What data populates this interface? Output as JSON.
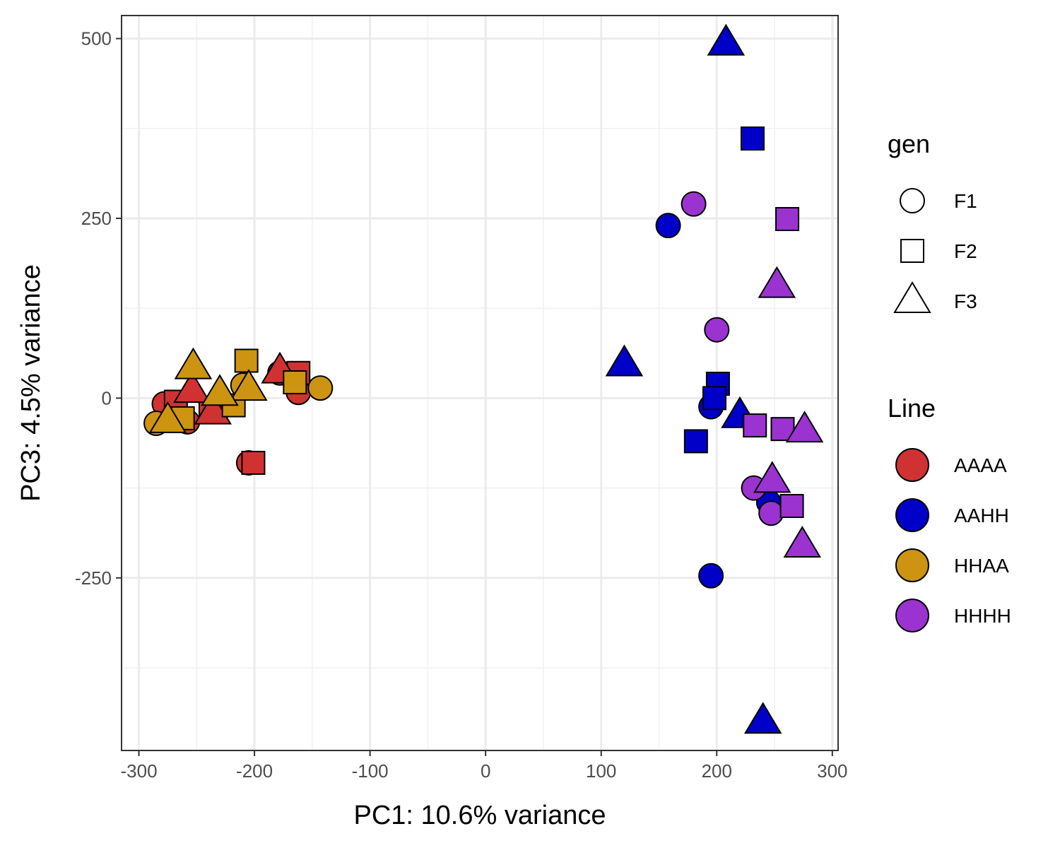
{
  "chart_data": {
    "type": "scatter",
    "title": "",
    "xlabel": "PC1: 10.6% variance",
    "ylabel": "PC3: 4.5% variance",
    "xlim": [
      -315,
      305
    ],
    "ylim": [
      -490,
      532
    ],
    "x_ticks": [
      -300,
      -200,
      -100,
      0,
      100,
      200,
      300
    ],
    "x_tick_labels": [
      "-300",
      "-200",
      "-100",
      "0",
      "100",
      "200",
      "300"
    ],
    "y_ticks": [
      -250,
      0,
      250,
      500
    ],
    "y_tick_labels": [
      "-250",
      "0",
      "250",
      "500"
    ],
    "grid": true,
    "legend_placement": "right",
    "shape_legend": {
      "title": "gen",
      "items": [
        {
          "label": "F1",
          "shape": "circle"
        },
        {
          "label": "F2",
          "shape": "square"
        },
        {
          "label": "F3",
          "shape": "triangle"
        }
      ]
    },
    "color_legend": {
      "title": "Line",
      "items": [
        {
          "label": "AAAA",
          "color": "#d03232"
        },
        {
          "label": "AAHH",
          "color": "#0000c8"
        },
        {
          "label": "HHAA",
          "color": "#cc9411"
        },
        {
          "label": "HHHH",
          "color": "#9a33d0"
        }
      ]
    },
    "series": [
      {
        "line": "AAAA",
        "gen": "F1",
        "points": [
          [
            -278,
            -8
          ],
          [
            -258,
            -33
          ],
          [
            -178,
            35
          ],
          [
            -162,
            8
          ],
          [
            -205,
            -90
          ]
        ]
      },
      {
        "line": "AAAA",
        "gen": "F2",
        "points": [
          [
            -268,
            -5
          ],
          [
            -238,
            -15
          ],
          [
            -162,
            35
          ],
          [
            -201,
            -90
          ]
        ]
      },
      {
        "line": "AAAA",
        "gen": "F3",
        "points": [
          [
            -254,
            10
          ],
          [
            -236,
            -20
          ],
          [
            -178,
            37
          ]
        ]
      },
      {
        "line": "AAHH",
        "gen": "F1",
        "points": [
          [
            158,
            240
          ],
          [
            195,
            -12
          ],
          [
            245,
            -145
          ],
          [
            195,
            -247
          ]
        ]
      },
      {
        "line": "AAHH",
        "gen": "F2",
        "points": [
          [
            231,
            361
          ],
          [
            201,
            20
          ],
          [
            198,
            0
          ],
          [
            182,
            -60
          ]
        ]
      },
      {
        "line": "AAHH",
        "gen": "F3",
        "points": [
          [
            208,
            493
          ],
          [
            120,
            47
          ],
          [
            220,
            -25
          ],
          [
            240,
            -450
          ]
        ]
      },
      {
        "line": "HHAA",
        "gen": "F1",
        "points": [
          [
            -285,
            -35
          ],
          [
            -210,
            18
          ],
          [
            -143,
            14
          ]
        ]
      },
      {
        "line": "HHAA",
        "gen": "F2",
        "points": [
          [
            -207,
            52
          ],
          [
            -165,
            22
          ],
          [
            -262,
            -28
          ],
          [
            -218,
            -10
          ]
        ]
      },
      {
        "line": "HHAA",
        "gen": "F3",
        "points": [
          [
            -253,
            43
          ],
          [
            -205,
            13
          ],
          [
            -230,
            6
          ],
          [
            -275,
            -32
          ]
        ]
      },
      {
        "line": "HHHH",
        "gen": "F1",
        "points": [
          [
            180,
            270
          ],
          [
            200,
            95
          ],
          [
            232,
            -125
          ],
          [
            247,
            -160
          ]
        ]
      },
      {
        "line": "HHHH",
        "gen": "F2",
        "points": [
          [
            261,
            249
          ],
          [
            233,
            -38
          ],
          [
            257,
            -43
          ],
          [
            265,
            -150
          ]
        ]
      },
      {
        "line": "HHHH",
        "gen": "F3",
        "points": [
          [
            252,
            156
          ],
          [
            276,
            -45
          ],
          [
            248,
            -115
          ],
          [
            274,
            -205
          ]
        ]
      }
    ]
  }
}
